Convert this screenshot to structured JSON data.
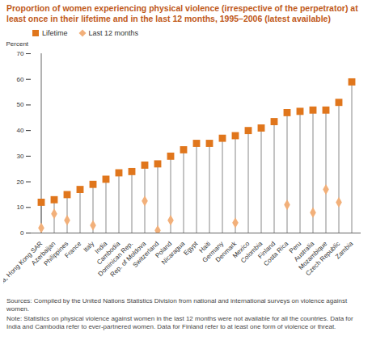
{
  "chart_data": {
    "type": "dot",
    "title": "Proportion of women experiencing physical violence (irrespective of the perpetrator) at least once in their lifetime and in the last 12 months, 1995–2006 (latest available)",
    "y_label": "Percent",
    "categories": [
      "China, Hong Kong SAR",
      "Azerbaijan",
      "Philippines",
      "France",
      "Italy",
      "India",
      "Cambodia",
      "Dominican Rep.",
      "Rep. of Moldova",
      "Switzerland",
      "Poland",
      "Nicaragua",
      "Egypt",
      "Haiti",
      "Germany",
      "Denmark",
      "Mexico",
      "Colombia",
      "Finland",
      "Costa Rica",
      "Peru",
      "Australia",
      "Mozambique",
      "Czech Republic",
      "Zambia"
    ],
    "series": [
      {
        "name": "Lifetime",
        "color": "#e0761c",
        "marker": "square",
        "values": [
          12,
          13,
          15,
          17,
          19,
          21,
          23.5,
          24,
          26.5,
          27,
          30,
          32.5,
          35,
          35,
          37,
          38,
          40,
          41,
          43.5,
          47,
          47.5,
          48,
          48,
          51,
          59
        ]
      },
      {
        "name": "Last 12 months",
        "color": "#f2b07a",
        "marker": "diamond",
        "values": [
          2,
          7.5,
          5,
          null,
          3,
          null,
          null,
          null,
          12.5,
          1,
          5,
          null,
          null,
          null,
          null,
          4,
          null,
          null,
          null,
          11,
          null,
          8,
          17,
          12,
          null
        ]
      }
    ],
    "ylim": [
      0,
      70
    ],
    "yticks": [
      0,
      10,
      20,
      30,
      40,
      50,
      60,
      70
    ],
    "grid": false,
    "legend": "top-left",
    "source": "Sources: Compiled by the United Nations Statistics Division from national and international surveys on violence against women.",
    "note": "Note: Statistics on physical violence against women in the last 12 months were not available for all the countries. Data for India and Cambodia refer to ever-partnered women. Data for Finland refer to at least one form of violence or threat."
  }
}
